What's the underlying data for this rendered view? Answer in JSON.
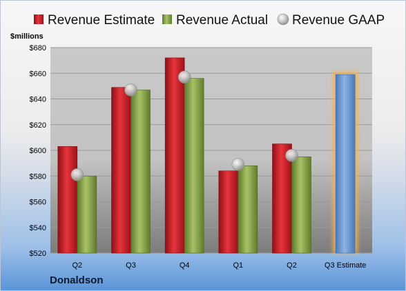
{
  "company": "Donaldson",
  "chart_data": {
    "type": "bar",
    "ylabel": "$millions",
    "ylim": [
      520,
      680
    ],
    "yticks": [
      "$520",
      "$540",
      "$560",
      "$580",
      "$600",
      "$620",
      "$640",
      "$660",
      "$680"
    ],
    "categories": [
      "Q2",
      "Q3",
      "Q4",
      "Q1",
      "Q2",
      "Q3 Estimate"
    ],
    "legend_position": "top",
    "grid": true,
    "series": [
      {
        "name": "Revenue Estimate",
        "type": "bar",
        "color": "#d0232b",
        "values": [
          603,
          649,
          672,
          584,
          605,
          null
        ]
      },
      {
        "name": "Revenue Actual",
        "type": "bar",
        "color": "#8aa84a",
        "values": [
          580,
          647,
          656,
          588,
          595,
          null
        ]
      },
      {
        "name": "Revenue GAAP",
        "type": "scatter",
        "color": "#b8b8b8",
        "values": [
          581,
          647,
          657,
          589,
          596,
          null
        ]
      }
    ],
    "forecast": {
      "category": "Q3 Estimate",
      "value": 659,
      "color": "#6f9ad3",
      "glow": "#f7b24a"
    }
  }
}
